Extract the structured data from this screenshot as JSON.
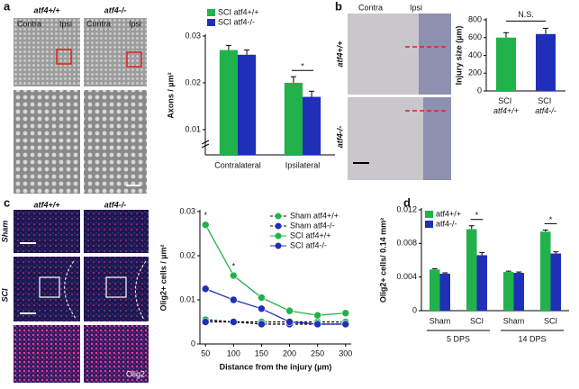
{
  "figure": {
    "panel_labels": [
      "a",
      "b",
      "c",
      "d"
    ],
    "a_images": {
      "columns": [
        "atf4+/+",
        "atf4-/-"
      ],
      "sides": [
        "Contra",
        "Ipsi",
        "Contra",
        "Ipsi"
      ]
    },
    "b_images": {
      "sides": [
        "Contra",
        "Ipsi"
      ],
      "rows": [
        "atf4+/+",
        "atf4-/-"
      ]
    },
    "c_images": {
      "columns": [
        "atf4+/+",
        "atf4-/-"
      ],
      "rows": [
        "Sham",
        "SCI"
      ],
      "stain": "Olig2"
    }
  },
  "chart_data": [
    {
      "type": "bar",
      "ylabel": "Axons / µm²",
      "categories": [
        "Contralateral",
        "Ipsilateral"
      ],
      "series": [
        {
          "name": "SCI atf4+/+",
          "color": "#21b24b",
          "values": [
            0.027,
            0.02
          ],
          "errors": [
            0.001,
            0.0013
          ]
        },
        {
          "name": "SCI atf4-/-",
          "color": "#1f2fb8",
          "values": [
            0.026,
            0.017
          ],
          "errors": [
            0.001,
            0.0012
          ]
        }
      ],
      "ylim": [
        0.0046,
        0.03
      ],
      "yticks": [
        0.01,
        0.02,
        0.03
      ],
      "annotations": [
        "*"
      ]
    },
    {
      "type": "bar",
      "ylabel": "Injury size (µm)",
      "categories": [
        "SCI atf4+/+",
        "SCI atf4-/-"
      ],
      "values": [
        600,
        640
      ],
      "errors": [
        55,
        65
      ],
      "colors": [
        "#21b24b",
        "#1f2fb8"
      ],
      "ylim": [
        0,
        800
      ],
      "yticks": [
        0,
        200,
        400,
        600,
        800
      ],
      "annotations": [
        "N.S."
      ]
    },
    {
      "type": "line",
      "ylabel": "Olig2+ cells / µm²",
      "xlabel": "Distance from the injury (µm)",
      "x": [
        50,
        100,
        150,
        200,
        250,
        300
      ],
      "series": [
        {
          "name": "Sham atf4+/+",
          "color": "#21b24b",
          "dash": true,
          "values": [
            0.0055,
            0.005,
            0.005,
            0.005,
            0.005,
            0.005
          ]
        },
        {
          "name": "Sham atf4-/-",
          "color": "#1f2fb8",
          "dash": true,
          "values": [
            0.005,
            0.005,
            0.0045,
            0.0045,
            0.0045,
            0.0045
          ]
        },
        {
          "name": "SCI atf4+/+",
          "color": "#21b24b",
          "dash": false,
          "values": [
            0.027,
            0.0155,
            0.0105,
            0.0075,
            0.0065,
            0.007
          ]
        },
        {
          "name": "SCI atf4-/-",
          "color": "#1f2fb8",
          "dash": false,
          "values": [
            0.0125,
            0.01,
            0.008,
            0.005,
            0.0045,
            0.0045
          ]
        }
      ],
      "xlim": [
        40,
        310
      ],
      "xticks": [
        50,
        100,
        150,
        200,
        250,
        300
      ],
      "ylim": [
        0,
        0.03
      ],
      "yticks": [
        0,
        0.01,
        0.02,
        0.03
      ],
      "annotations": [
        "*",
        "*"
      ]
    },
    {
      "type": "bar",
      "ylabel": "Olig2+ cells/ 0.14 mm²",
      "categories": [
        "Sham",
        "SCI",
        "Sham",
        "SCI"
      ],
      "groups": [
        "5 DPS",
        "14 DPS"
      ],
      "series": [
        {
          "name": "atf4+/+",
          "color": "#21b24b",
          "values": [
            0.0049,
            0.0097,
            0.0046,
            0.0094
          ],
          "errors": [
            0.0001,
            0.0004,
            0.0001,
            0.0002
          ]
        },
        {
          "name": "atf4-/-",
          "color": "#1f2fb8",
          "values": [
            0.0044,
            0.0066,
            0.0045,
            0.0068
          ],
          "errors": [
            0.0001,
            0.0003,
            0.0001,
            0.0002
          ]
        }
      ],
      "ylim": [
        0,
        0.012
      ],
      "yticks": [
        0,
        0.004,
        0.008,
        0.012
      ],
      "annotations": [
        "*",
        "*"
      ]
    }
  ]
}
